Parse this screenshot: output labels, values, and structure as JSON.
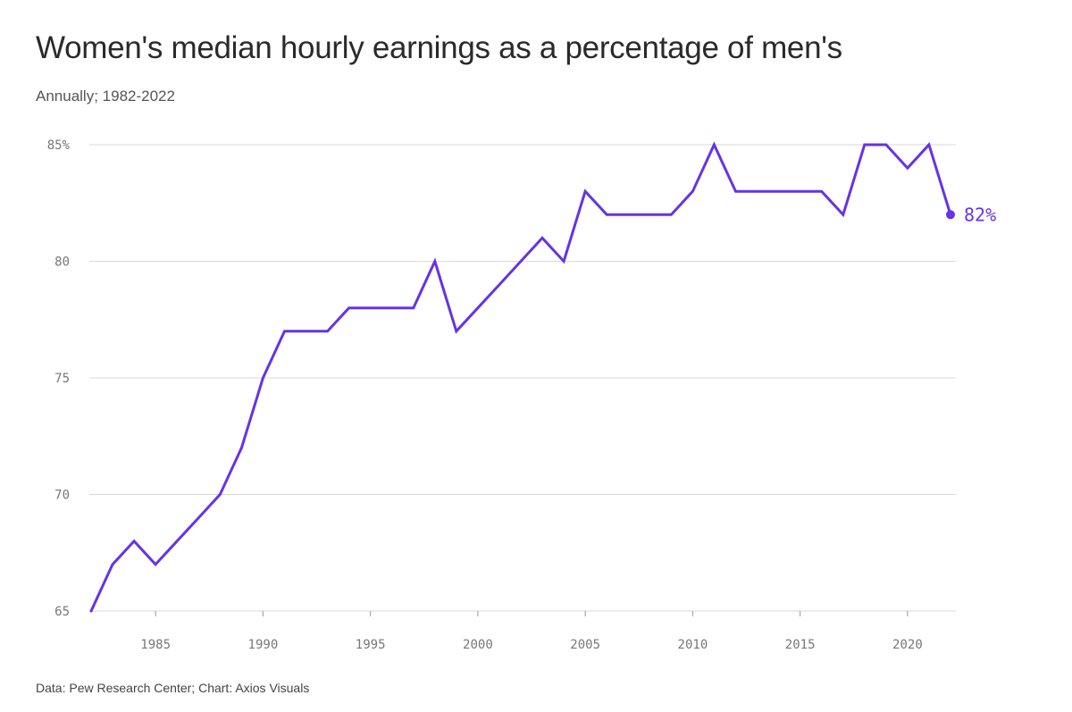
{
  "header": {
    "title": "Women's median hourly earnings as a percentage of men's",
    "subtitle": "Annually; 1982-2022"
  },
  "footer": {
    "source": "Data: Pew Research Center; Chart: Axios Visuals"
  },
  "colors": {
    "line": "#6633e6",
    "grid": "#d9d9d9",
    "text": "#2a2a2a"
  },
  "chart_data": {
    "type": "line",
    "title": "Women's median hourly earnings as a percentage of men's",
    "subtitle": "Annually; 1982-2022",
    "xlabel": "",
    "ylabel": "",
    "xlim": [
      1982,
      2022
    ],
    "ylim": [
      65,
      85
    ],
    "grid": "horizontal",
    "x_ticks": [
      1985,
      1990,
      1995,
      2000,
      2005,
      2010,
      2015,
      2020
    ],
    "x_tick_labels": [
      "1985",
      "1990",
      "1995",
      "2000",
      "2005",
      "2010",
      "2015",
      "2020"
    ],
    "y_ticks": [
      65,
      70,
      75,
      80,
      85
    ],
    "y_tick_labels": [
      "65",
      "70",
      "75",
      "80",
      "85%"
    ],
    "end_label": "82%",
    "series": [
      {
        "x": [
          1982,
          1983,
          1984,
          1985,
          1986,
          1987,
          1988,
          1989,
          1990,
          1991,
          1992,
          1993,
          1994,
          1995,
          1996,
          1997,
          1998,
          1999,
          2000,
          2001,
          2002,
          2003,
          2004,
          2005,
          2006,
          2007,
          2008,
          2009,
          2010,
          2011,
          2012,
          2013,
          2014,
          2015,
          2016,
          2017,
          2018,
          2019,
          2020,
          2021,
          2022
        ],
        "values": [
          65,
          67,
          68,
          67,
          68,
          69,
          70,
          72,
          75,
          77,
          77,
          77,
          78,
          78,
          78,
          78,
          80,
          77,
          78,
          79,
          80,
          81,
          80,
          83,
          82,
          82,
          82,
          82,
          83,
          85,
          83,
          83,
          83,
          83,
          83,
          82,
          85,
          85,
          84,
          85,
          82
        ]
      }
    ]
  }
}
